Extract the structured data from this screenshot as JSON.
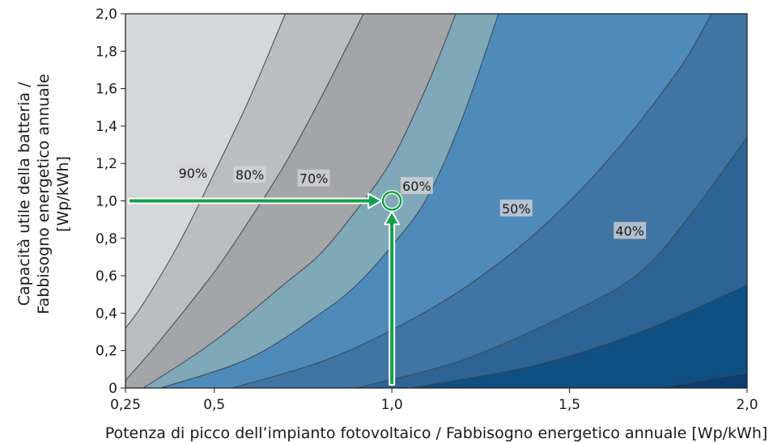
{
  "chart_data": {
    "type": "contour",
    "xlabel": "Potenza di picco dell’impianto fotovoltaico / Fabbisogno energetico annuale [Wp/kWh]",
    "ylabel_lines": [
      "Capacità utile della batteria /",
      "Fabbisogno energetico annuale",
      "[Wp/kWh]"
    ],
    "xlim": [
      0.25,
      2.0
    ],
    "ylim": [
      0,
      2.0
    ],
    "x_ticks": [
      {
        "value": 0.25,
        "label": "0,25"
      },
      {
        "value": 0.5,
        "label": "0,5"
      },
      {
        "value": 1.0,
        "label": "1,0"
      },
      {
        "value": 1.5,
        "label": "1,5"
      },
      {
        "value": 2.0,
        "label": "2,0"
      }
    ],
    "y_ticks": [
      {
        "value": 0,
        "label": "0"
      },
      {
        "value": 0.2,
        "label": "0,2"
      },
      {
        "value": 0.4,
        "label": "0,4"
      },
      {
        "value": 0.6,
        "label": "0,6"
      },
      {
        "value": 0.8,
        "label": "0,8"
      },
      {
        "value": 1.0,
        "label": "1,0"
      },
      {
        "value": 1.2,
        "label": "1,2"
      },
      {
        "value": 1.4,
        "label": "1,4"
      },
      {
        "value": 1.6,
        "label": "1,6"
      },
      {
        "value": 1.8,
        "label": "1,8"
      },
      {
        "value": 2.0,
        "label": "2,0"
      }
    ],
    "zone_colors": [
      "#d6d7d8",
      "#bcbdbf",
      "#a4a5a8",
      "#7fa8b8",
      "#4e8bba",
      "#3f74a3",
      "#2c6595",
      "#0e4f84",
      "#0a3f70"
    ],
    "contours": [
      {
        "label": "90%",
        "points": [
          [
            0.25,
            0.32
          ],
          [
            0.3,
            0.45
          ],
          [
            0.4,
            0.77
          ],
          [
            0.5,
            1.15
          ],
          [
            0.6,
            1.55
          ],
          [
            0.7,
            2.0
          ]
        ]
      },
      {
        "label": "80%",
        "points": [
          [
            0.25,
            0.04
          ],
          [
            0.35,
            0.26
          ],
          [
            0.5,
            0.62
          ],
          [
            0.6,
            0.9
          ],
          [
            0.7,
            1.2
          ],
          [
            0.8,
            1.55
          ],
          [
            0.92,
            2.0
          ]
        ]
      },
      {
        "label": "70%",
        "points": [
          [
            0.3,
            0.0
          ],
          [
            0.5,
            0.25
          ],
          [
            0.7,
            0.56
          ],
          [
            0.8,
            0.72
          ],
          [
            0.9,
            0.95
          ],
          [
            1.0,
            1.22
          ],
          [
            1.1,
            1.62
          ],
          [
            1.18,
            2.0
          ]
        ]
      },
      {
        "label": "60%",
        "points": [
          [
            0.35,
            0.0
          ],
          [
            0.6,
            0.16
          ],
          [
            0.8,
            0.4
          ],
          [
            0.9,
            0.55
          ],
          [
            1.0,
            0.76
          ],
          [
            1.1,
            1.02
          ],
          [
            1.2,
            1.45
          ],
          [
            1.3,
            2.0
          ]
        ]
      },
      {
        "label": "50%",
        "points": [
          [
            0.55,
            0.0
          ],
          [
            0.8,
            0.14
          ],
          [
            1.0,
            0.31
          ],
          [
            1.2,
            0.53
          ],
          [
            1.4,
            0.82
          ],
          [
            1.6,
            1.2
          ],
          [
            1.8,
            1.68
          ],
          [
            1.9,
            2.0
          ]
        ]
      },
      {
        "label": "40%",
        "points": [
          [
            0.9,
            0.0
          ],
          [
            1.2,
            0.15
          ],
          [
            1.5,
            0.4
          ],
          [
            1.7,
            0.62
          ],
          [
            1.85,
            0.95
          ],
          [
            2.0,
            1.34
          ]
        ]
      },
      {
        "label": "",
        "points": [
          [
            1.05,
            0.0
          ],
          [
            1.4,
            0.12
          ],
          [
            1.7,
            0.3
          ],
          [
            2.0,
            0.55
          ]
        ]
      },
      {
        "label": "",
        "points": [
          [
            1.75,
            0.0
          ],
          [
            1.9,
            0.05
          ],
          [
            2.0,
            0.08
          ]
        ]
      }
    ],
    "labels": [
      {
        "text": "90%",
        "x": 0.44,
        "y": 1.15
      },
      {
        "text": "80%",
        "x": 0.6,
        "y": 1.14
      },
      {
        "text": "70%",
        "x": 0.78,
        "y": 1.12
      },
      {
        "text": "60%",
        "x": 1.07,
        "y": 1.08
      },
      {
        "text": "50%",
        "x": 1.35,
        "y": 0.96
      },
      {
        "text": "40%",
        "x": 1.67,
        "y": 0.84
      }
    ],
    "highlight_point": {
      "x": 1.0,
      "y": 1.0
    },
    "arrow_color": "#12a14a"
  }
}
